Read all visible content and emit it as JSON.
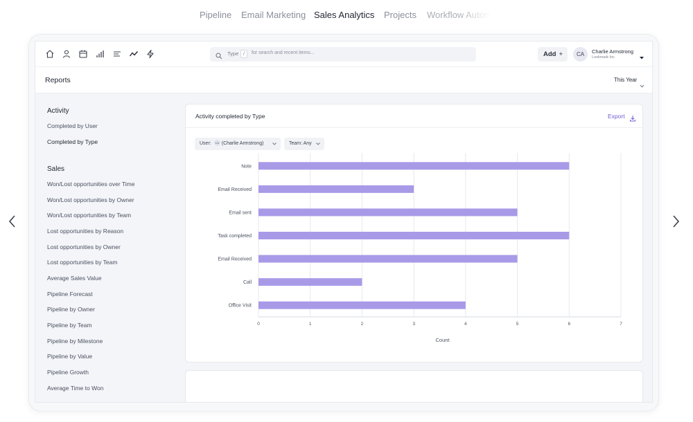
{
  "top_tabs": [
    {
      "label": "Pipeline",
      "active": false
    },
    {
      "label": "Email Marketing",
      "active": false
    },
    {
      "label": "Sales Analytics",
      "active": true
    },
    {
      "label": "Projects",
      "active": false
    },
    {
      "label": "Workflow Autom",
      "active": false
    }
  ],
  "header": {
    "nav_icons": [
      "home-icon",
      "user-icon",
      "calendar-icon",
      "bar-chart-icon",
      "list-icon",
      "trend-line-icon",
      "lightning-icon"
    ],
    "search": {
      "type_label": "Type",
      "key": "/",
      "hint": "for search and recent items..."
    },
    "add_label": "Add",
    "add_plus": "+",
    "user": {
      "initials": "CA",
      "name": "Charlie Armstrong",
      "org": "Lookmark Inc"
    }
  },
  "reports": {
    "title": "Reports",
    "period": "This Year"
  },
  "sidebar": {
    "activity_heading": "Activity",
    "activity_items": [
      {
        "label": "Completed by User",
        "active": false
      },
      {
        "label": "Completed by Type",
        "active": true
      }
    ],
    "sales_heading": "Sales",
    "sales_items": [
      "Won/Lost opportunities over Time",
      "Won/Lost opportunities by Owner",
      "Won/Lost opportunities by Team",
      "Lost opportunities by Reason",
      "Lost opportunities by Owner",
      "Lost opportunities by Team",
      "Average Sales Value",
      "Pipeline Forecast",
      "Pipeline by Owner",
      "Pipeline by Team",
      "Pipeline by Milestone",
      "Pipeline by Value",
      "Pipeline Growth",
      "Average Time to Won"
    ]
  },
  "card": {
    "title": "Activity completed by Type",
    "export_label": "Export",
    "filter_user_label": "User:",
    "filter_user_initials": "CA",
    "filter_user_value": "(Charlie Armstrong)",
    "filter_team": "Team: Any"
  },
  "colors": {
    "bar": "#a99ae8",
    "accent": "#6d5dd3",
    "grid": "#e6e8ee"
  },
  "chart_data": {
    "type": "bar",
    "orientation": "horizontal",
    "categories": [
      "Note",
      "Email Received",
      "Email sent",
      "Task completed",
      "Email Received",
      "Call",
      "Office Visit"
    ],
    "values": [
      6,
      3,
      5,
      6,
      5,
      2,
      4
    ],
    "xlabel": "Count",
    "xlim": [
      0,
      7
    ],
    "xticks": [
      "0",
      "1",
      "2",
      "3",
      "4",
      "5",
      "6",
      "7"
    ],
    "grid": true
  }
}
